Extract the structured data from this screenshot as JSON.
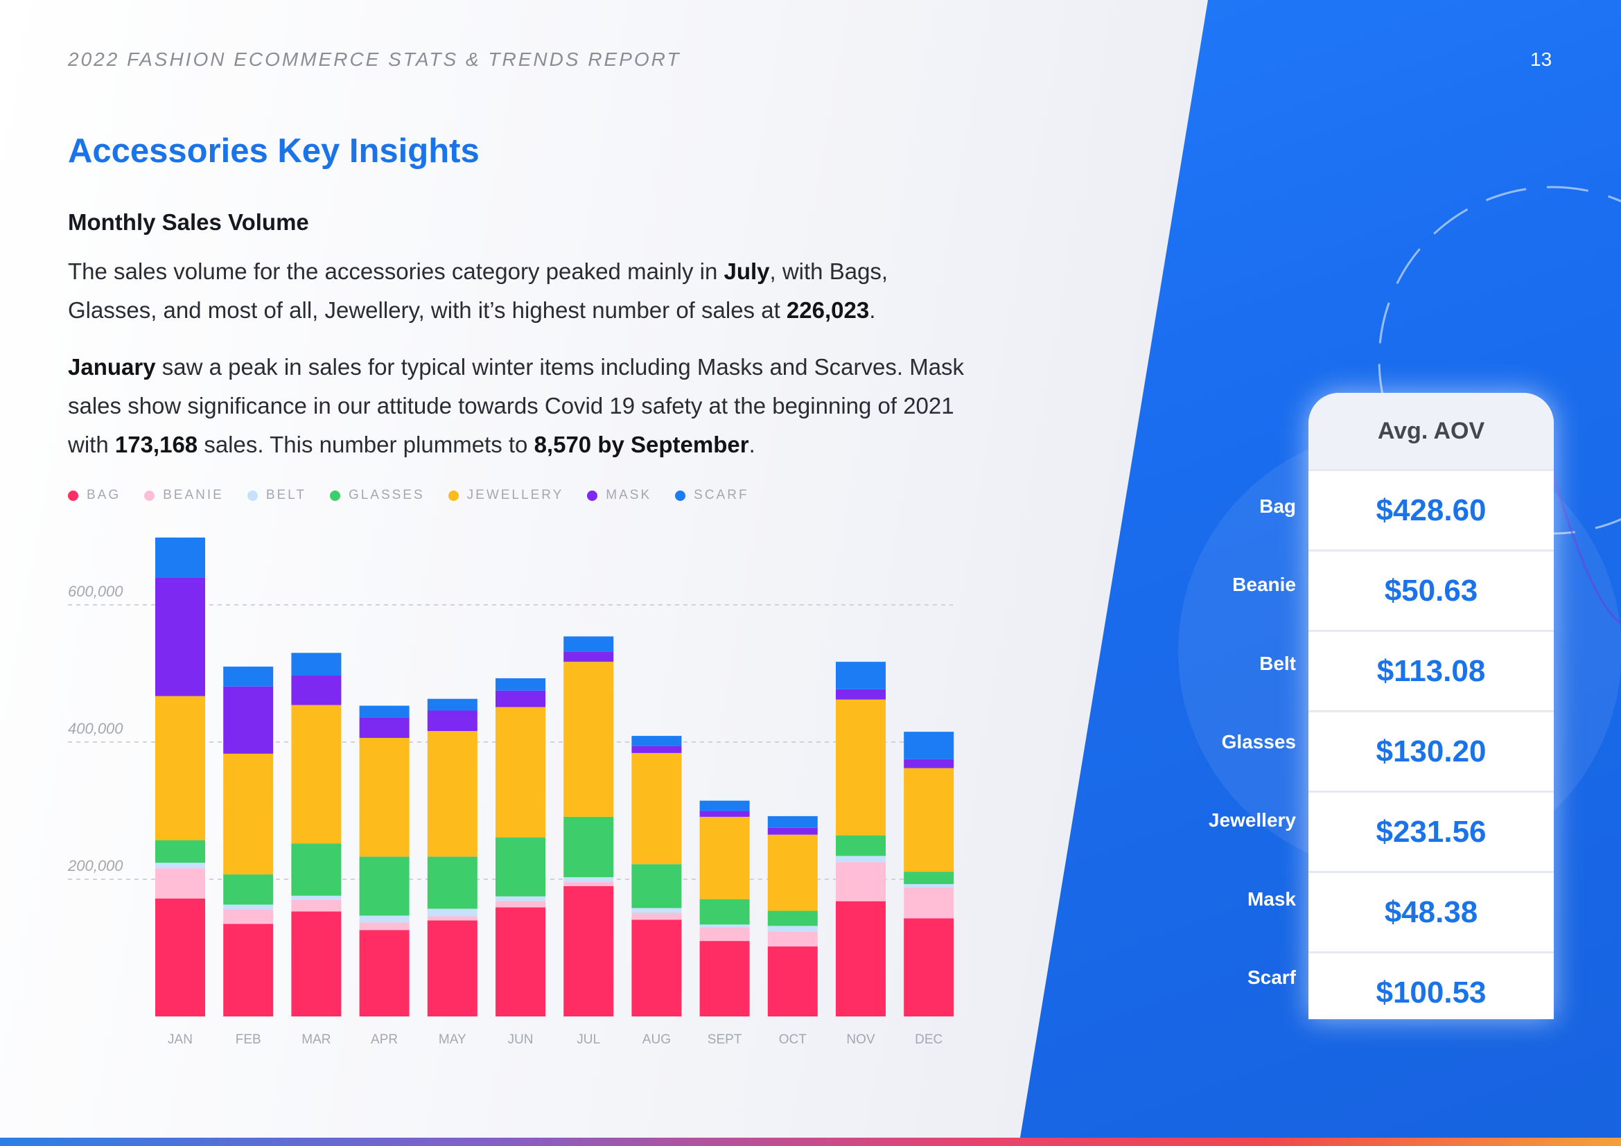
{
  "header": {
    "report_title": "2022 FASHION ECOMMERCE STATS & TRENDS REPORT",
    "page_number": "13"
  },
  "section": {
    "title": "Accessories Key Insights",
    "subtitle": "Monthly Sales Volume"
  },
  "paragraph1": {
    "t1": "The sales volume for the accessories category peaked mainly in ",
    "b1": "July",
    "t2": ", with Bags, Glasses, and most of all, Jewellery, with it’s highest number of sales at ",
    "b2": "226,023",
    "t3": "."
  },
  "paragraph2": {
    "b1": "January",
    "t1": " saw a peak in sales for typical winter items including Masks and Scarves. Mask sales show significance in our attitude towards Covid 19 safety at the beginning of 2021 with ",
    "b2": "173,168",
    "t2": " sales. This number plummets to ",
    "b3": "8,570 by September",
    "t3": "."
  },
  "chart_data": {
    "type": "bar",
    "stacked": true,
    "title": "Monthly Sales Volume",
    "xlabel": "",
    "ylabel": "",
    "ylim": [
      0,
      700000
    ],
    "yticks": [
      200000,
      400000,
      600000
    ],
    "ytick_labels": [
      "200,000",
      "400,000",
      "600,000"
    ],
    "grid": true,
    "legend_position": "top-left",
    "categories": [
      "JAN",
      "FEB",
      "MAR",
      "APR",
      "MAY",
      "JUN",
      "JUL",
      "AUG",
      "SEPT",
      "OCT",
      "NOV",
      "DEC"
    ],
    "series": [
      {
        "name": "BAG",
        "color": "#ff2d63",
        "values": [
          172000,
          135000,
          153000,
          126000,
          140000,
          159000,
          190000,
          141000,
          110000,
          102000,
          168000,
          143000
        ]
      },
      {
        "name": "BEANIE",
        "color": "#ffbdd6",
        "values": [
          44000,
          21000,
          17000,
          11000,
          6000,
          9000,
          6000,
          10000,
          20000,
          22000,
          57000,
          45000
        ]
      },
      {
        "name": "BELT",
        "color": "#c6e1fc",
        "values": [
          8000,
          7000,
          6000,
          10000,
          11000,
          7000,
          7000,
          7000,
          4000,
          8000,
          9000,
          5000
        ]
      },
      {
        "name": "GLASSES",
        "color": "#3dcd6a",
        "values": [
          33000,
          44000,
          76000,
          86000,
          76000,
          86000,
          88000,
          64000,
          37000,
          22000,
          30000,
          18000
        ]
      },
      {
        "name": "JEWELLERY",
        "color": "#fdbb1c",
        "values": [
          210000,
          176000,
          202000,
          173000,
          183000,
          190000,
          226023,
          162000,
          120000,
          111000,
          198000,
          151000
        ]
      },
      {
        "name": "MASK",
        "color": "#7e29f1",
        "values": [
          173168,
          98000,
          43000,
          30000,
          30000,
          24000,
          15000,
          10000,
          8570,
          10000,
          15000,
          13000
        ]
      },
      {
        "name": "SCARF",
        "color": "#1b7cf3",
        "values": [
          58000,
          29000,
          33000,
          17000,
          17000,
          18000,
          22000,
          15000,
          15000,
          17000,
          40000,
          40000
        ]
      }
    ]
  },
  "aov": {
    "header": "Avg. AOV",
    "items": [
      {
        "label": "Bag",
        "value": "$428.60"
      },
      {
        "label": "Beanie",
        "value": "$50.63"
      },
      {
        "label": "Belt",
        "value": "$113.08"
      },
      {
        "label": "Glasses",
        "value": "$130.20"
      },
      {
        "label": "Jewellery",
        "value": "$231.56"
      },
      {
        "label": "Mask",
        "value": "$48.38"
      },
      {
        "label": "Scarf",
        "value": "$100.53"
      }
    ]
  }
}
